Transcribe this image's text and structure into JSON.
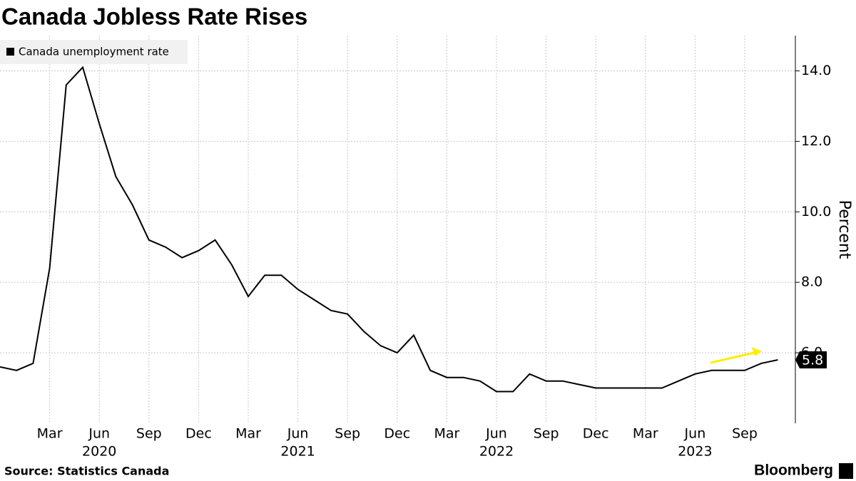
{
  "chart_data": {
    "type": "line",
    "title": "Canada Jobless Rate Rises",
    "source": "Source: Statistics Canada",
    "brand": "Bloomberg",
    "y_label": "Percent",
    "categories": [
      null,
      null,
      null,
      "Mar",
      null,
      null,
      "Jun",
      null,
      null,
      "Sep",
      null,
      null,
      "Dec",
      null,
      null,
      "Mar",
      null,
      null,
      "Jun",
      null,
      null,
      "Sep",
      null,
      null,
      "Dec",
      null,
      null,
      "Mar",
      null,
      null,
      "Jun",
      null,
      null,
      "Sep",
      null,
      null,
      "Dec",
      null,
      null,
      "Mar",
      null,
      null,
      "Jun",
      null,
      null,
      "Sep",
      null,
      null
    ],
    "year_labels": [
      {
        "category": 6,
        "label": "2020"
      },
      {
        "category": 18,
        "label": "2021"
      },
      {
        "category": 30,
        "label": "2022"
      },
      {
        "category": 42,
        "label": "2023"
      }
    ],
    "series": [
      {
        "name": "Canada unemployment rate",
        "color": "#000000",
        "values": [
          5.6,
          5.5,
          5.7,
          8.4,
          13.6,
          14.1,
          12.5,
          11.0,
          10.2,
          9.2,
          9.0,
          8.7,
          8.9,
          9.2,
          8.5,
          7.6,
          8.2,
          8.2,
          7.8,
          7.5,
          7.2,
          7.1,
          6.6,
          6.2,
          6.0,
          6.5,
          5.5,
          5.3,
          5.3,
          5.2,
          4.9,
          4.9,
          5.4,
          5.2,
          5.2,
          5.1,
          5.0,
          5.0,
          5.0,
          5.0,
          5.0,
          5.2,
          5.4,
          5.5,
          5.5,
          5.5,
          5.7,
          5.8
        ]
      }
    ],
    "last_value_label": "5.8",
    "ylim": [
      4,
      15
    ],
    "yticks": [
      {
        "value": 6,
        "label": "6.0"
      },
      {
        "value": 8,
        "label": "8.0"
      },
      {
        "value": 10,
        "label": "10.0"
      },
      {
        "value": 12,
        "label": "12.0"
      },
      {
        "value": 14,
        "label": "14.0"
      }
    ],
    "grid": true,
    "legend": "top-left"
  }
}
